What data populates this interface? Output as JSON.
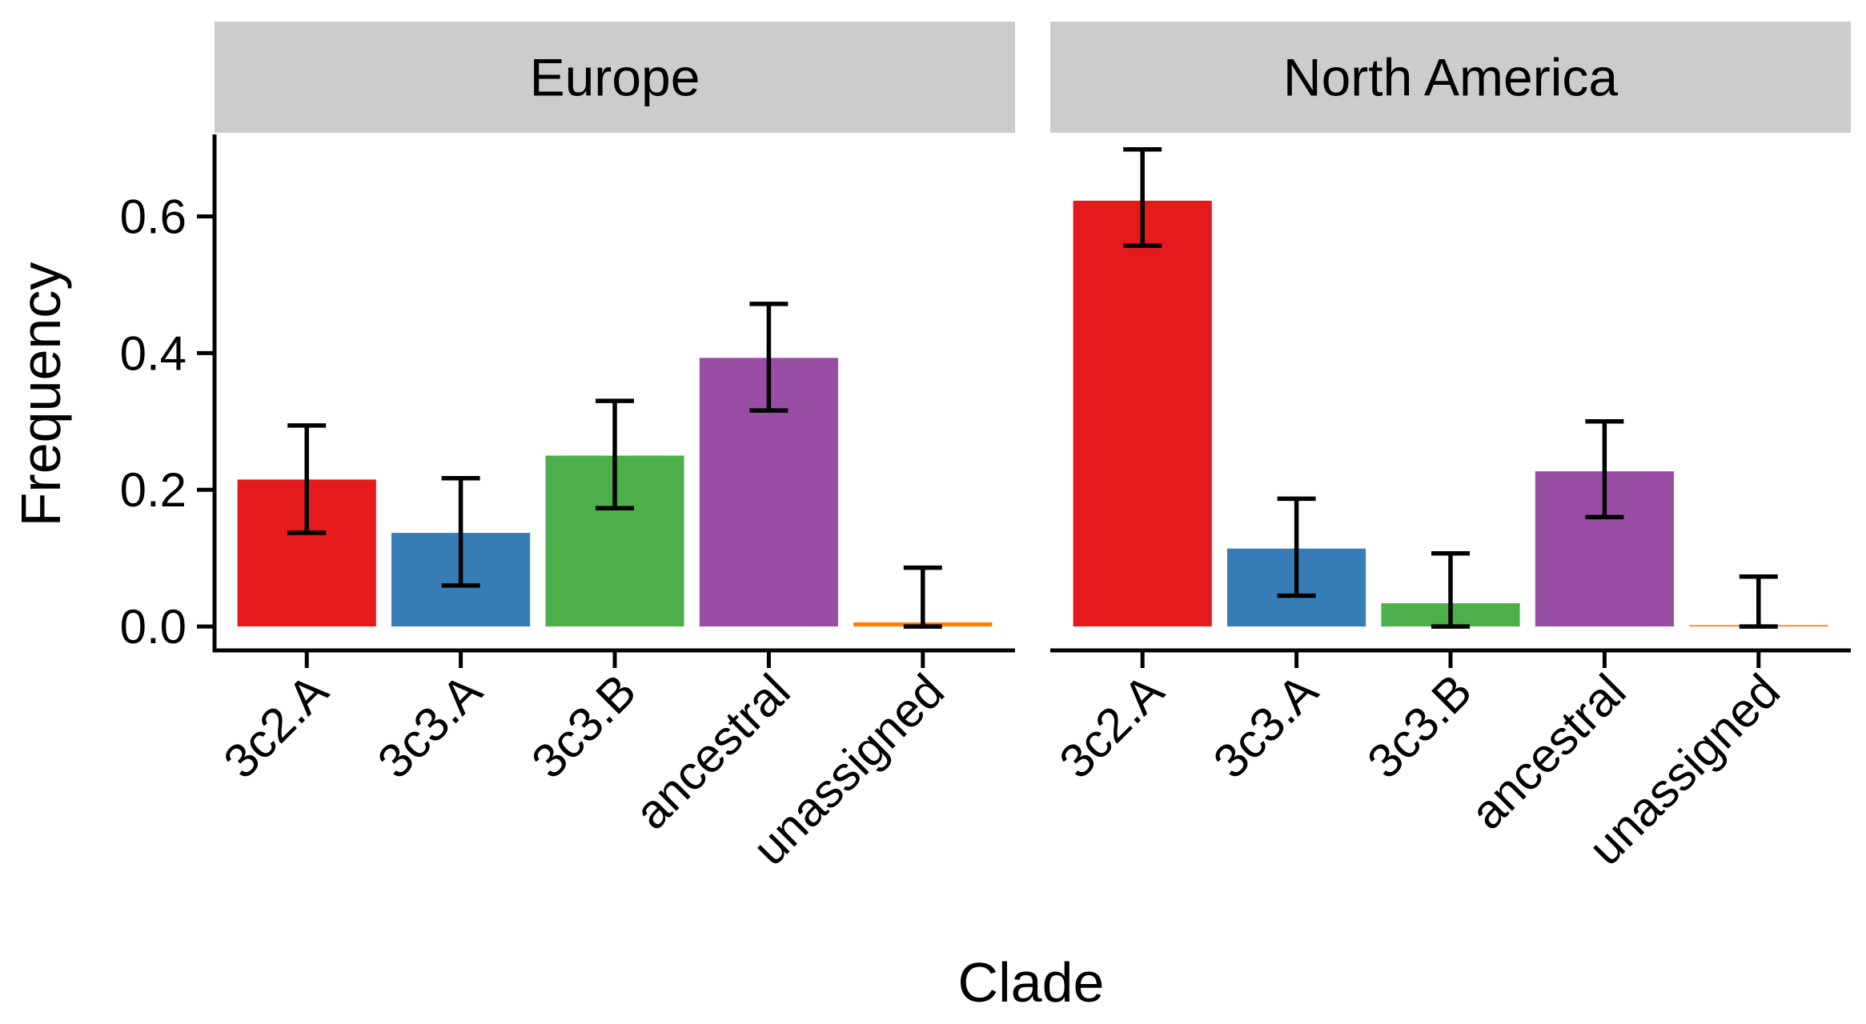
{
  "chart_data": {
    "type": "bar",
    "xlabel": "Clade",
    "ylabel": "Frequency",
    "ylim": [
      -0.035,
      0.72
    ],
    "yticks": [
      0.0,
      0.2,
      0.4,
      0.6
    ],
    "ytick_labels": [
      "0.0",
      "0.2",
      "0.4",
      "0.6"
    ],
    "categories": [
      "3c2.A",
      "3c3.A",
      "3c3.B",
      "ancestral",
      "unassigned"
    ],
    "colors": {
      "3c2.A": "#E41A1C",
      "3c3.A": "#377EB8",
      "3c3.B": "#4DAF4A",
      "ancestral": "#984EA3",
      "unassigned": "#FF7F00"
    },
    "panels": [
      {
        "facet": "Europe",
        "values": [
          0.215,
          0.137,
          0.25,
          0.393,
          0.006
        ],
        "error_low": [
          0.137,
          0.06,
          0.173,
          0.316,
          0.0
        ],
        "error_high": [
          0.294,
          0.217,
          0.33,
          0.472,
          0.086
        ]
      },
      {
        "facet": "North America",
        "values": [
          0.623,
          0.114,
          0.034,
          0.227,
          0.002
        ],
        "error_low": [
          0.557,
          0.045,
          0.0,
          0.16,
          0.0
        ],
        "error_high": [
          0.698,
          0.187,
          0.107,
          0.3,
          0.073
        ]
      }
    ]
  }
}
